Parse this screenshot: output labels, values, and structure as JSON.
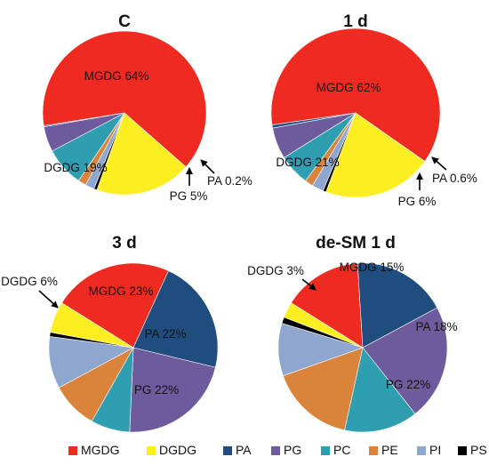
{
  "chart_data": [
    {
      "type": "pie",
      "title": "C",
      "slices": [
        {
          "category": "MGDG",
          "value": 64
        },
        {
          "category": "DGDG",
          "value": 19
        },
        {
          "category": "PS",
          "value": 0.6
        },
        {
          "category": "PI",
          "value": 1.8
        },
        {
          "category": "PE",
          "value": 1.6
        },
        {
          "category": "PC",
          "value": 7.8
        },
        {
          "category": "PG",
          "value": 5
        },
        {
          "category": "PA",
          "value": 0.2
        }
      ],
      "labels": [
        {
          "text": "MGDG 64%"
        },
        {
          "text": "DGDG 19%"
        },
        {
          "text": "PG 5%"
        },
        {
          "text": "PA 0.2%"
        }
      ]
    },
    {
      "type": "pie",
      "title": "1 d",
      "slices": [
        {
          "category": "MGDG",
          "value": 62
        },
        {
          "category": "DGDG",
          "value": 21
        },
        {
          "category": "PS",
          "value": 0.6
        },
        {
          "category": "PI",
          "value": 2.2
        },
        {
          "category": "PE",
          "value": 1.6
        },
        {
          "category": "PC",
          "value": 6
        },
        {
          "category": "PG",
          "value": 6
        },
        {
          "category": "PA",
          "value": 0.6
        }
      ],
      "labels": [
        {
          "text": "MGDG 62%"
        },
        {
          "text": "DGDG 21%"
        },
        {
          "text": "PG 6%"
        },
        {
          "text": "PA 0.6%"
        }
      ]
    },
    {
      "type": "pie",
      "title": "3 d",
      "slices": [
        {
          "category": "MGDG",
          "value": 23
        },
        {
          "category": "PA",
          "value": 22
        },
        {
          "category": "PG",
          "value": 22
        },
        {
          "category": "PC",
          "value": 7.5
        },
        {
          "category": "PE",
          "value": 9
        },
        {
          "category": "PI",
          "value": 10
        },
        {
          "category": "PS",
          "value": 0.8
        },
        {
          "category": "DGDG",
          "value": 6
        }
      ],
      "labels": [
        {
          "text": "MGDG 23%"
        },
        {
          "text": "PA 22%"
        },
        {
          "text": "PG 22%"
        },
        {
          "text": "DGDG 6%"
        }
      ]
    },
    {
      "type": "pie",
      "title": "de-SM 1 d",
      "slices": [
        {
          "category": "MGDG",
          "value": 15
        },
        {
          "category": "PA",
          "value": 18
        },
        {
          "category": "PG",
          "value": 22
        },
        {
          "category": "PC",
          "value": 14
        },
        {
          "category": "PE",
          "value": 16
        },
        {
          "category": "PI",
          "value": 10
        },
        {
          "category": "PS",
          "value": 1.2
        },
        {
          "category": "DGDG",
          "value": 3
        }
      ],
      "labels": [
        {
          "text": "MGDG 15%"
        },
        {
          "text": "PA 18%"
        },
        {
          "text": "PG 22%"
        },
        {
          "text": "DGDG 3%"
        }
      ]
    }
  ],
  "legend": {
    "placement": "bottom",
    "items": [
      {
        "label": "MGDG",
        "color": "#ef2b21"
      },
      {
        "label": "DGDG",
        "color": "#fcee21"
      },
      {
        "label": "PA",
        "color": "#1f4e7e"
      },
      {
        "label": "PG",
        "color": "#6e5b9e"
      },
      {
        "label": "PC",
        "color": "#2f9eb0"
      },
      {
        "label": "PE",
        "color": "#d9833b"
      },
      {
        "label": "PI",
        "color": "#8fa7cf"
      },
      {
        "label": "PS",
        "color": "#000000"
      }
    ]
  }
}
